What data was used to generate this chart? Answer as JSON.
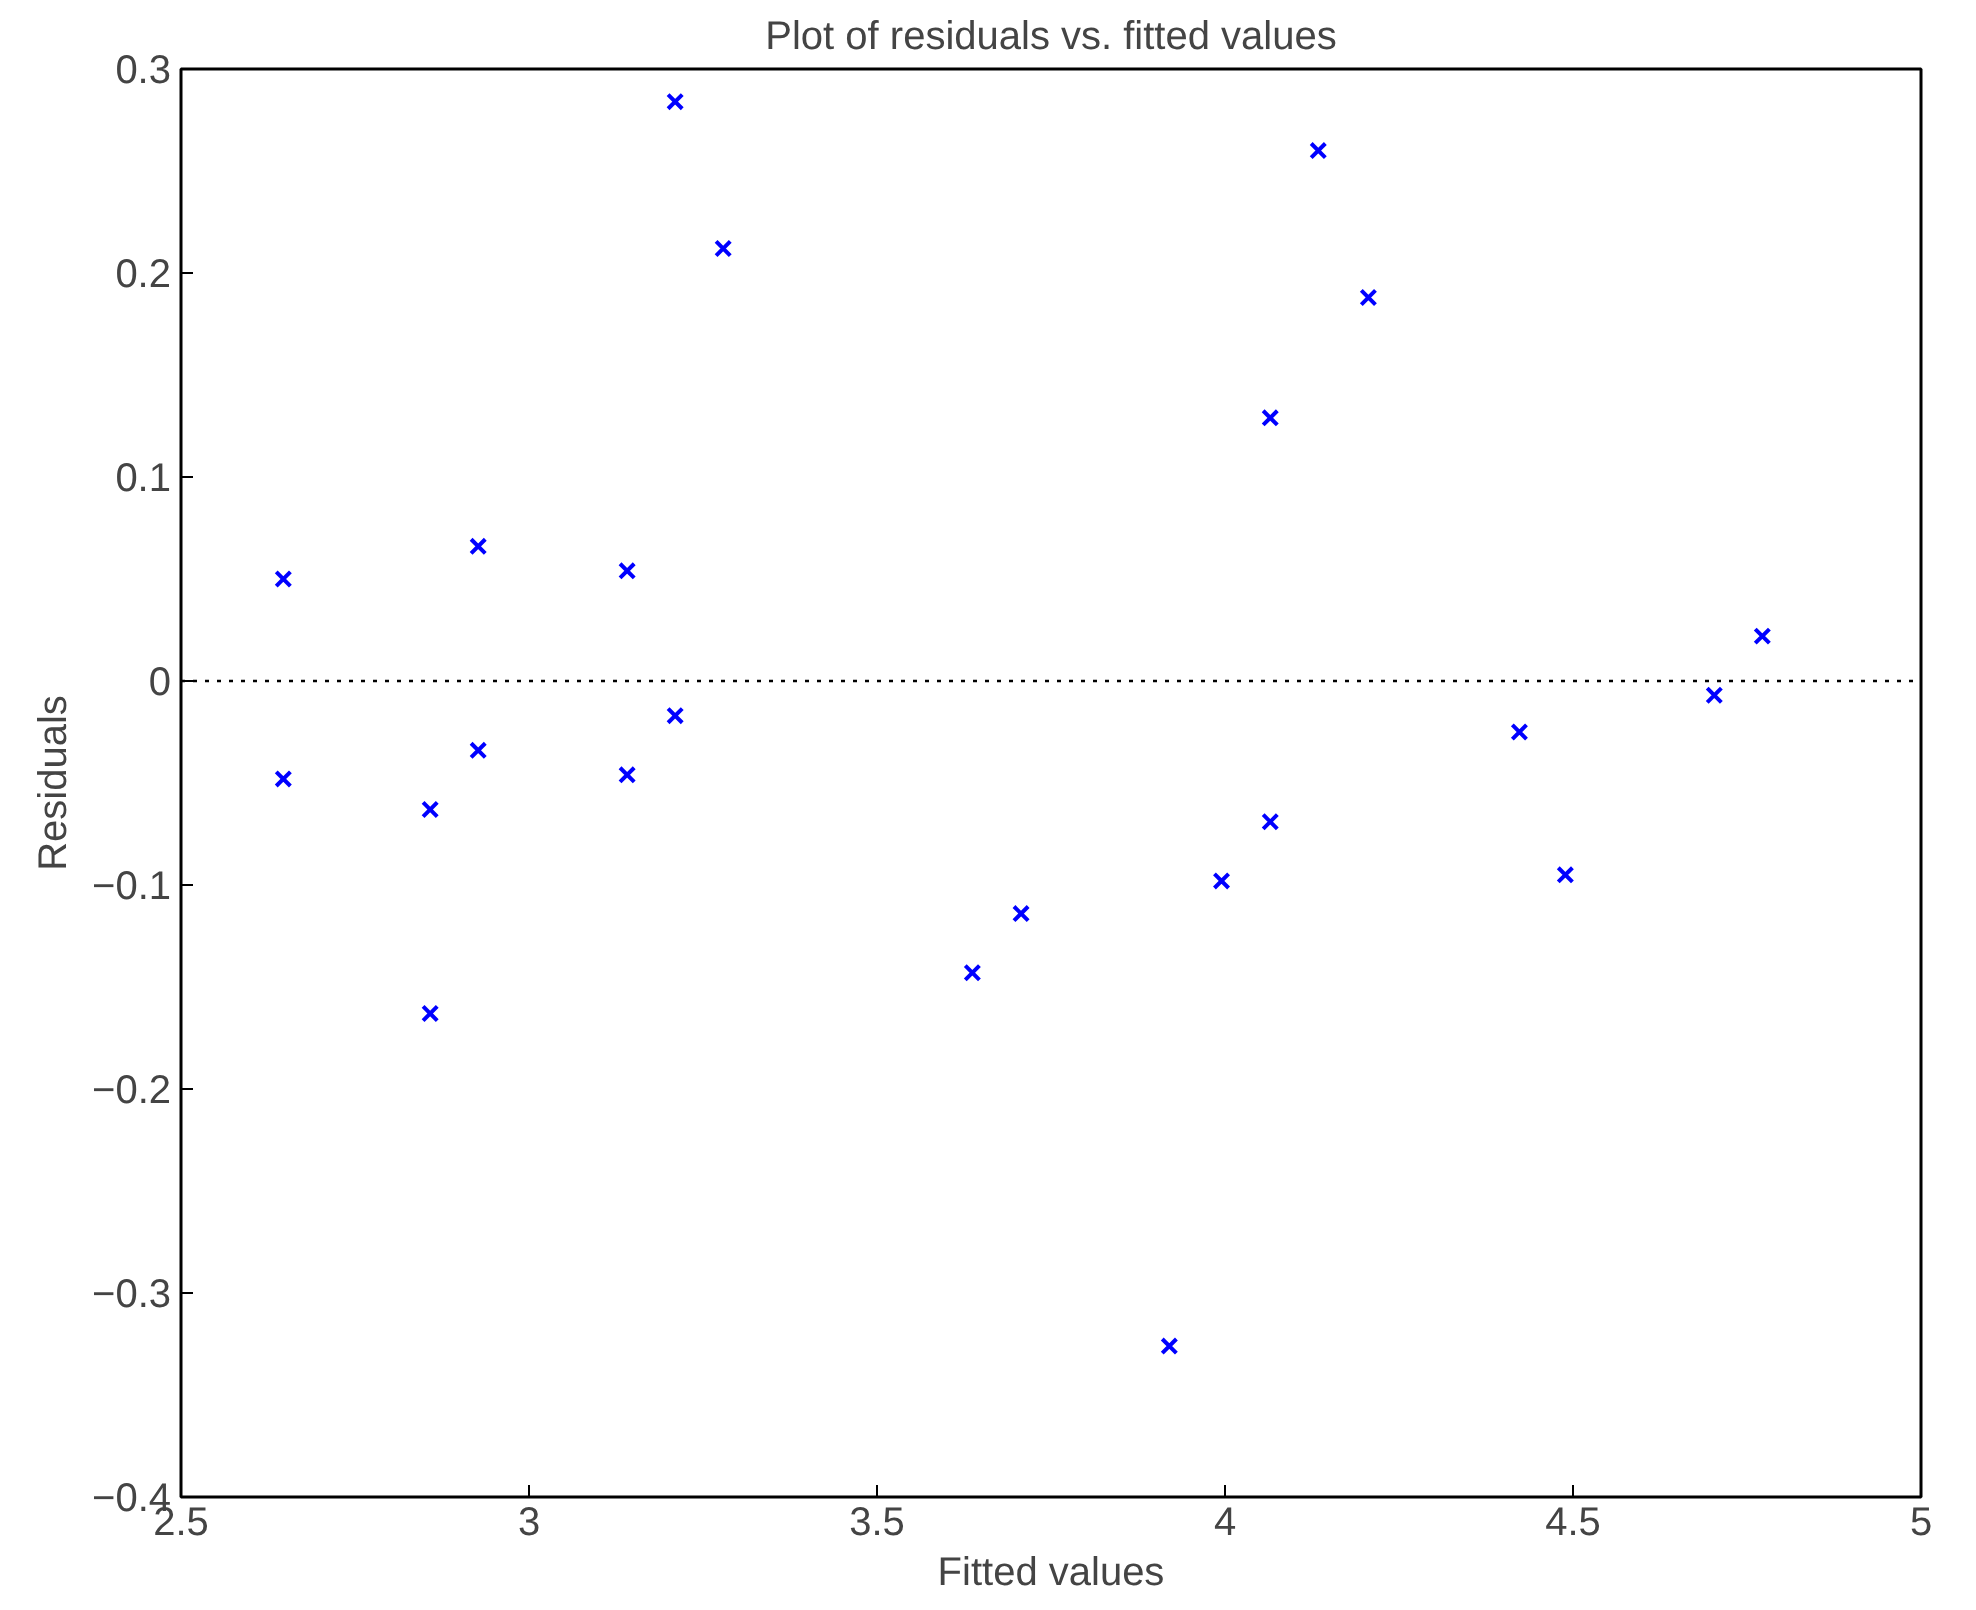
{
  "chart_data": {
    "type": "scatter",
    "title": "Plot of residuals vs. fitted values",
    "xlabel": "Fitted values",
    "ylabel": "Residuals",
    "x": [
      2.647,
      2.647,
      2.927,
      2.927,
      2.858,
      2.858,
      3.141,
      3.141,
      3.21,
      3.21,
      3.279,
      3.637,
      3.707,
      3.92,
      3.995,
      4.065,
      4.065,
      4.134,
      4.206,
      4.423,
      4.489,
      4.703,
      4.772
    ],
    "values": [
      0.05,
      -0.048,
      0.066,
      -0.034,
      -0.063,
      -0.163,
      0.054,
      -0.046,
      0.284,
      -0.017,
      0.212,
      -0.143,
      -0.114,
      -0.326,
      -0.098,
      -0.069,
      0.129,
      0.26,
      0.188,
      -0.025,
      -0.095,
      -0.007,
      0.022
    ],
    "color": "#0000ff",
    "marker": "cross",
    "xlim": [
      2.5,
      5
    ],
    "ylim": [
      -0.4,
      0.3
    ],
    "xticks": [
      2.5,
      3,
      3.5,
      4,
      4.5,
      5
    ],
    "yticks": [
      -0.4,
      -0.3,
      -0.2,
      -0.1,
      0,
      0.1,
      0.2,
      0.3
    ],
    "ref_lines": [
      {
        "axis": "y",
        "value": 0,
        "color": "#000000",
        "line_style": "dotted"
      }
    ],
    "grid": false
  }
}
